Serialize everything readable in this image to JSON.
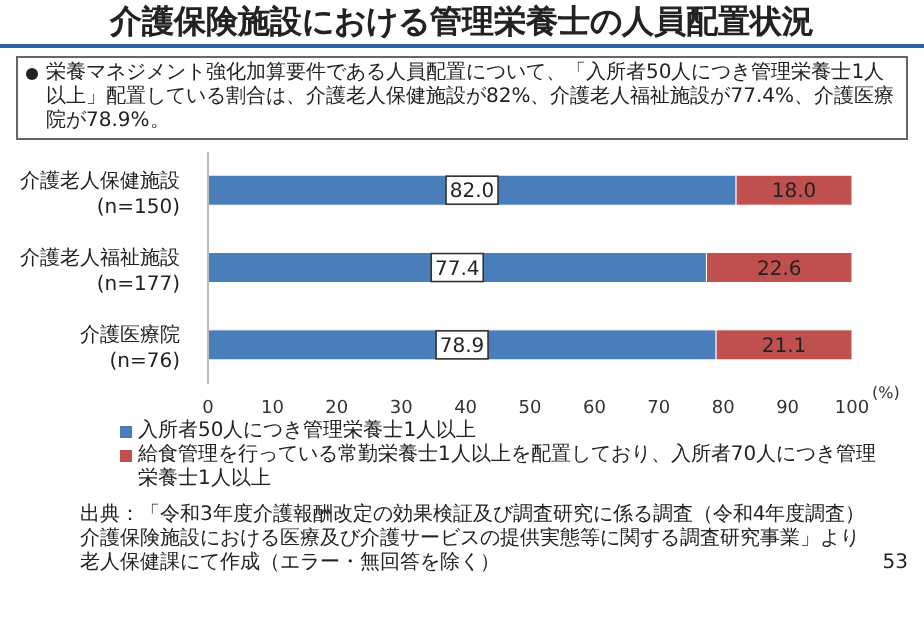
{
  "chart_data": {
    "type": "bar",
    "orientation": "horizontal",
    "stacked": true,
    "title": "介護保険施設における管理栄養士の人員配置状況",
    "annotations": [
      "栄養マネジメント強化加算要件である人員配置について、「入所者50人につき管理栄養士1人以上」配置している割合は、介護老人保健施設が82%、介護老人福祉施設が77.4%、介護医療院が78.9%。",
      "出典：「令和3年度介護報酬改定の効果検証及び調査研究に係る調査（令和4年度調査）介護保険施設における医療及び介護サービスの提供実態等に関する調査研究事業」より老人保健課にて作成（エラー・無回答を除く）",
      "53"
    ],
    "categories": [
      "介護老人保健施設 (n=150)",
      "介護老人福祉施設 (n=177)",
      "介護医療院 (n=76)"
    ],
    "series": [
      {
        "name": "入所者50人につき管理栄養士1人以上",
        "color": "#4a7ebb",
        "values": [
          82.0,
          77.4,
          78.9
        ],
        "value_labels": [
          "82.0",
          "77.4",
          "78.9"
        ]
      },
      {
        "name": "給食管理を行っている常勤栄養士1人以上を配置しており、入所者70人につき管理栄養士1人以上",
        "color": "#c0504d",
        "values": [
          18.0,
          22.6,
          21.1
        ],
        "value_labels": [
          "18.0",
          "22.6",
          "21.1"
        ]
      }
    ],
    "xlabel": "(%)",
    "xlim": [
      0,
      100
    ],
    "xticks": [
      0,
      10,
      20,
      30,
      40,
      50,
      60,
      70,
      80,
      90,
      100
    ],
    "legend": "bottom"
  }
}
